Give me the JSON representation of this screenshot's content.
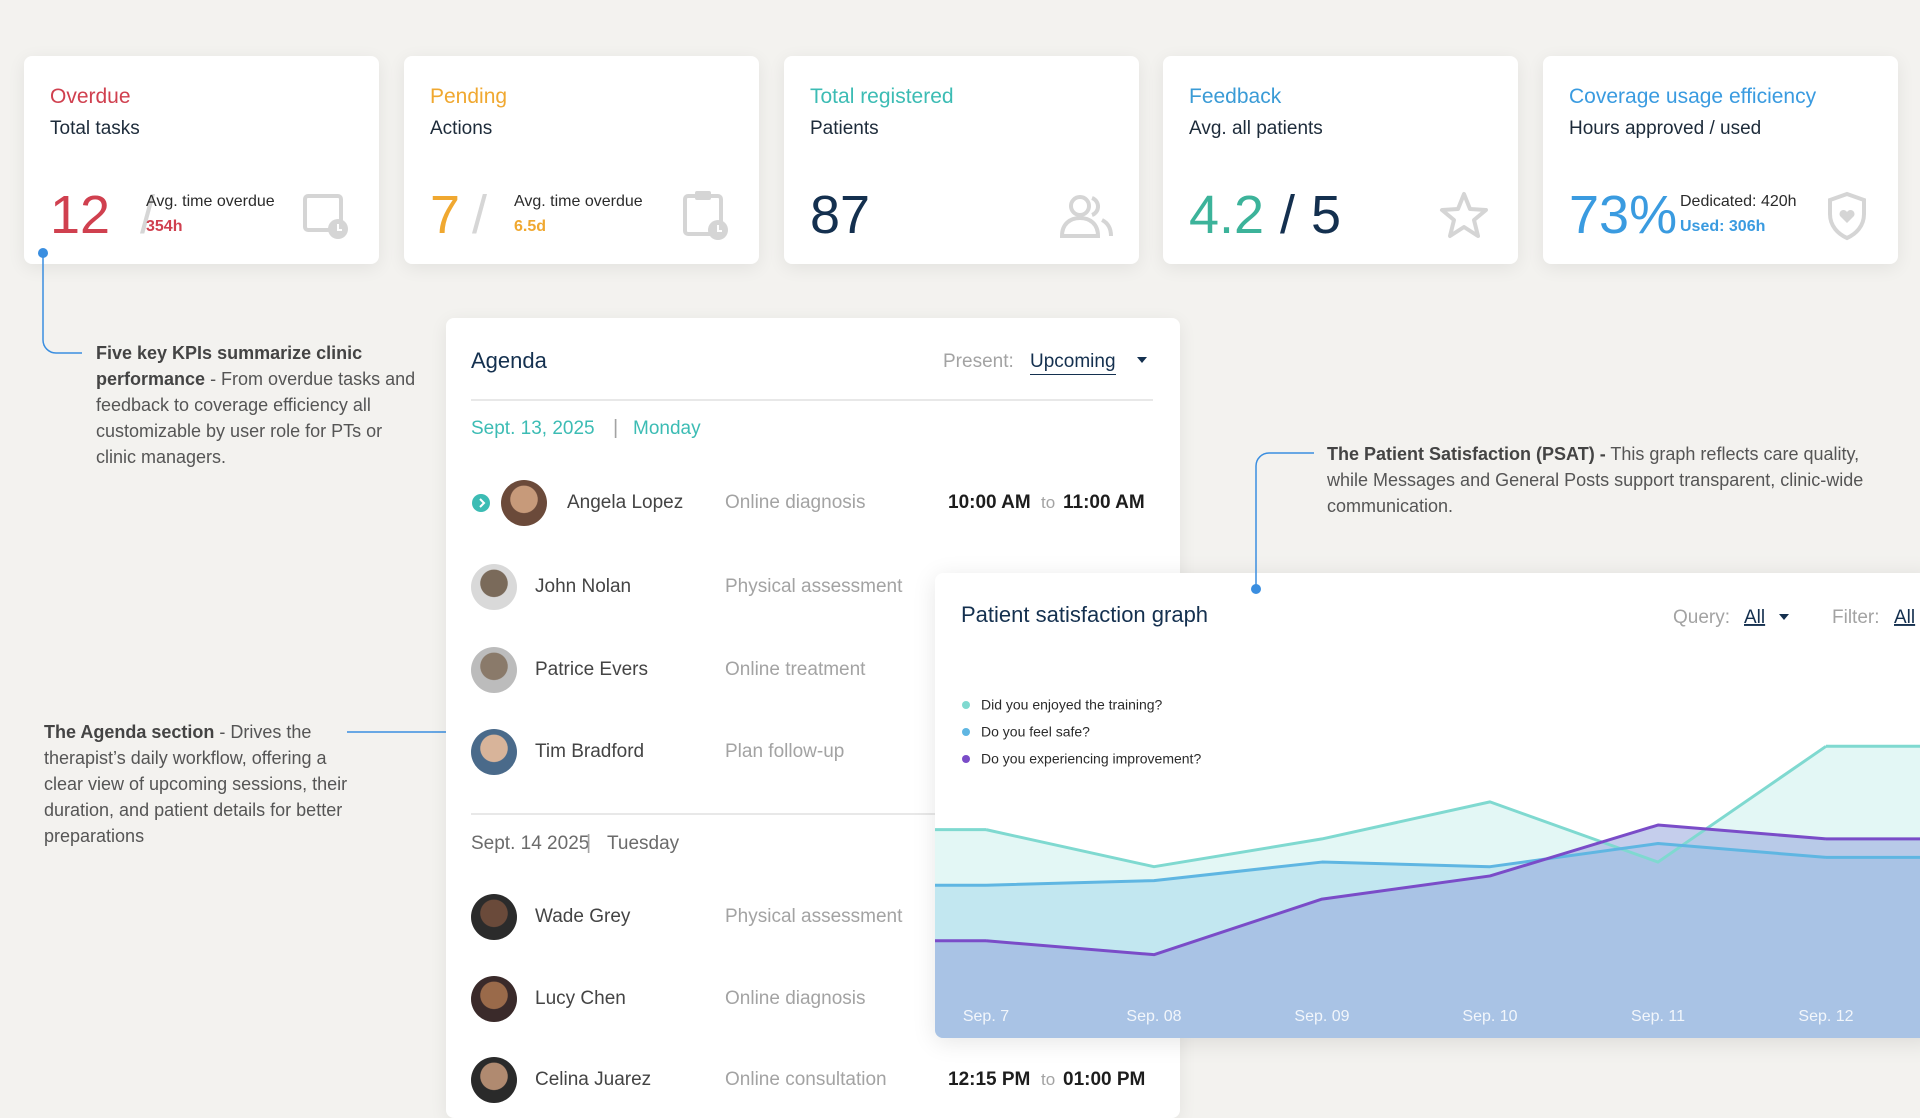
{
  "kpis": [
    {
      "title": "Overdue",
      "subtitle": "Total tasks",
      "value": "12",
      "separator": "/",
      "detail_label": "Avg. time overdue",
      "detail_value": "354h"
    },
    {
      "title": "Pending",
      "subtitle": "Actions",
      "value": "7",
      "separator": "/",
      "detail_label": "Avg. time overdue",
      "detail_value": "6.5d"
    },
    {
      "title": "Total registered",
      "subtitle": "Patients",
      "value": "87"
    },
    {
      "title": "Feedback",
      "subtitle": "Avg. all patients",
      "value": "4.2",
      "separator": "/",
      "out_of": "5"
    },
    {
      "title": "Coverage usage efficiency",
      "subtitle": "Hours approved / used",
      "value": "73%",
      "detail_label": "Dedicated: 420h",
      "detail_value": "Used: 306h"
    }
  ],
  "annotations": [
    {
      "lead": "Five key KPIs summarize clinic performance",
      "body": "- From overdue tasks and feedback to coverage efficiency all customizable by user role for PTs or clinic managers."
    },
    {
      "lead": "The Agenda section",
      "body": "- Drives the therapist’s daily workflow, offering a clear view of upcoming sessions, their duration, and patient details for better preparations"
    },
    {
      "lead": "The Patient Satisfaction (PSAT) -",
      "body": "This graph reflects care quality, while Messages and General Posts support transparent, clinic-wide communication."
    }
  ],
  "agenda": {
    "title": "Agenda",
    "present_label": "Present:",
    "present_value": "Upcoming",
    "days": [
      {
        "date": "Sept. 13, 2025",
        "separator": "|",
        "weekday": "Monday",
        "items": [
          {
            "name": "Angela Lopez",
            "type": "Online diagnosis",
            "start": "10:00 AM",
            "to": "to",
            "end": "11:00 AM"
          },
          {
            "name": "John Nolan",
            "type": "Physical assessment"
          },
          {
            "name": "Patrice Evers",
            "type": "Online treatment"
          },
          {
            "name": "Tim Bradford",
            "type": "Plan follow-up"
          }
        ]
      },
      {
        "date": "Sept. 14 2025",
        "separator": "|",
        "weekday": "Tuesday",
        "items": [
          {
            "name": "Wade Grey",
            "type": "Physical assessment"
          },
          {
            "name": "Lucy Chen",
            "type": "Online diagnosis"
          },
          {
            "name": "Celina Juarez",
            "type": "Online consultation",
            "start": "12:15 PM",
            "to": "to",
            "end": "01:00 PM"
          }
        ]
      }
    ]
  },
  "chart_data": {
    "type": "area",
    "title": "Patient satisfaction graph",
    "query_label": "Query:",
    "query_value": "All",
    "filter_label": "Filter:",
    "filter_value": "All",
    "categories": [
      "Sep. 7",
      "Sep. 08",
      "Sep. 09",
      "Sep. 10",
      "Sep. 11",
      "Sep. 12"
    ],
    "ylim": [
      0,
      100
    ],
    "series": [
      {
        "name": "Did you enjoyed the training?",
        "color": "#7fd9d0",
        "values": [
          45,
          37,
          43,
          51,
          38,
          63
        ]
      },
      {
        "name": "Do you feel safe?",
        "color": "#5fb6e2",
        "values": [
          33,
          34,
          38,
          37,
          42,
          39
        ]
      },
      {
        "name": "Do you experiencing improvement?",
        "color": "#7a4cc8",
        "values": [
          21,
          18,
          30,
          35,
          46,
          43
        ]
      }
    ]
  }
}
